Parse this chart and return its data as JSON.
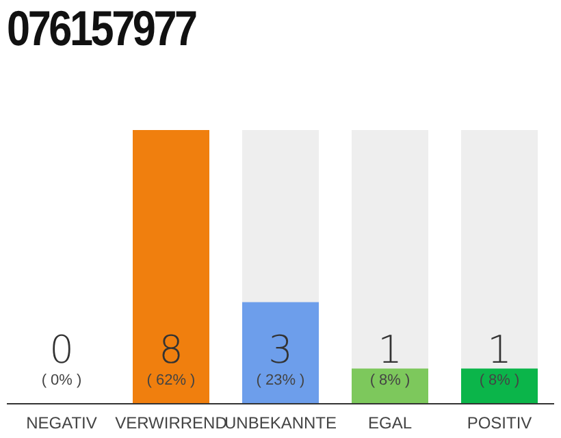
{
  "chart_data": {
    "type": "bar",
    "title": "076157977",
    "categories": [
      "NEGATIV",
      "VERWIRREND",
      "UNBEKANNTE",
      "EGAL",
      "POSITIV"
    ],
    "values": [
      0,
      62,
      23,
      8,
      8
    ],
    "colors": [
      "#e0301e",
      "#f07f0e",
      "#6d9eeb",
      "#7dc85c",
      "#0bb54a"
    ],
    "value_labels": [
      "( 0% )",
      "( 62% )",
      "( 23% )",
      "( 8% )",
      "( 8% )"
    ],
    "annotations": [
      "0",
      "8",
      "3",
      "1",
      "1"
    ]
  }
}
